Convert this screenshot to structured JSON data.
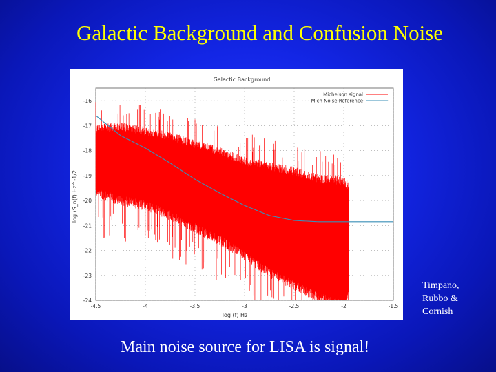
{
  "slide": {
    "title": "Galactic Background and Confusion Noise",
    "credit_lines": [
      "Timpano,",
      "Rubbo &",
      "Cornish"
    ],
    "footer": "Main noise source for LISA is signal!"
  },
  "chart_data": {
    "type": "line",
    "title": "Galactic Background",
    "xlabel": "log (f) Hz",
    "ylabel": "log (S_n(f)  Hz^-1/2",
    "xlim": [
      -4.5,
      -1.5
    ],
    "ylim": [
      -24,
      -15.5
    ],
    "xticks": [
      "-4.5",
      "-4",
      "-3.5",
      "-3",
      "-2.5",
      "-2",
      "-1.5"
    ],
    "yticks": [
      "-16",
      "-17",
      "-18",
      "-19",
      "-20",
      "-21",
      "-22",
      "-23",
      "-24"
    ],
    "legend_position": "top-right",
    "series": [
      {
        "name": "Michelson signal",
        "color": "#ff0000",
        "style": "noisy band",
        "upper": {
          "x": [
            -4.5,
            -4.25,
            -4.0,
            -3.75,
            -3.5,
            -3.25,
            -3.0,
            -2.75,
            -2.5,
            -2.25,
            -2.0,
            -1.95
          ],
          "y": [
            -17.3,
            -17.2,
            -17.4,
            -17.6,
            -17.9,
            -18.2,
            -18.6,
            -18.8,
            -19.0,
            -19.3,
            -19.4,
            -19.6
          ]
        },
        "lower": {
          "x": [
            -4.5,
            -4.25,
            -4.0,
            -3.75,
            -3.5,
            -3.25,
            -3.0,
            -2.75,
            -2.5,
            -2.25,
            -2.0,
            -1.95
          ],
          "y": [
            -19.5,
            -19.8,
            -20.0,
            -20.4,
            -20.9,
            -21.4,
            -22.0,
            -22.7,
            -23.2,
            -23.7,
            -24.0,
            -23.6
          ]
        }
      },
      {
        "name": "Mich Noise Reference",
        "color": "#3a8fb7",
        "x": [
          -4.5,
          -4.25,
          -4.0,
          -3.75,
          -3.5,
          -3.25,
          -3.0,
          -2.75,
          -2.5,
          -2.25,
          -2.0,
          -1.75,
          -1.5
        ],
        "y": [
          -16.6,
          -17.4,
          -17.9,
          -18.5,
          -19.15,
          -19.7,
          -20.2,
          -20.6,
          -20.8,
          -20.85,
          -20.85,
          -20.85,
          -20.85
        ]
      }
    ]
  }
}
